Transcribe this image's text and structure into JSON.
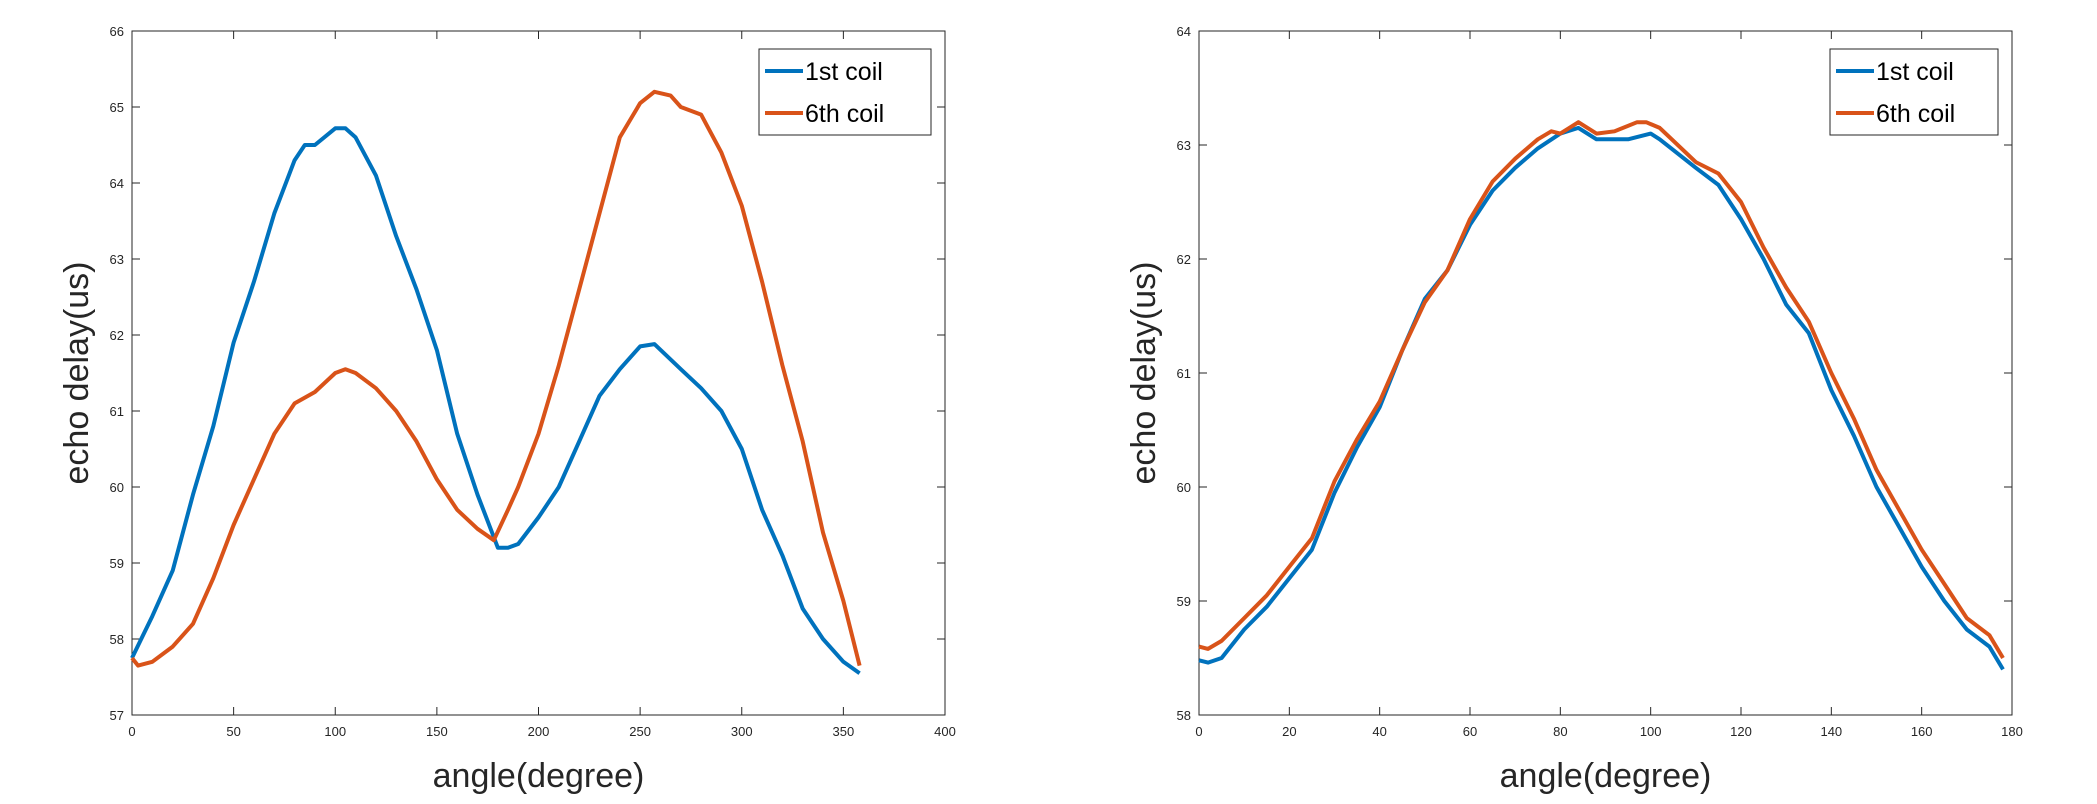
{
  "chart_data": [
    {
      "type": "line",
      "xlabel": "angle(degree)",
      "ylabel": "echo delay(us)",
      "xlim": [
        0,
        400
      ],
      "ylim": [
        57,
        66
      ],
      "xticks": [
        0,
        50,
        100,
        150,
        200,
        250,
        300,
        350,
        400
      ],
      "yticks": [
        57,
        58,
        59,
        60,
        61,
        62,
        63,
        64,
        65,
        66
      ],
      "grid": false,
      "legend": "top-right",
      "series": [
        {
          "name": "1st coil",
          "color": "#0072BD",
          "x": [
            0,
            10,
            20,
            30,
            40,
            50,
            60,
            70,
            80,
            85,
            90,
            100,
            105,
            110,
            120,
            130,
            140,
            150,
            160,
            170,
            180,
            185,
            190,
            200,
            210,
            220,
            230,
            240,
            250,
            257,
            270,
            280,
            290,
            300,
            310,
            320,
            330,
            340,
            350,
            358
          ],
          "y": [
            57.75,
            58.3,
            58.9,
            59.9,
            60.8,
            61.9,
            62.7,
            63.6,
            64.3,
            64.5,
            64.5,
            64.72,
            64.72,
            64.6,
            64.1,
            63.3,
            62.6,
            61.8,
            60.7,
            59.9,
            59.2,
            59.2,
            59.25,
            59.6,
            60.0,
            60.6,
            61.2,
            61.55,
            61.85,
            61.88,
            61.55,
            61.3,
            61.0,
            60.5,
            59.7,
            59.1,
            58.4,
            58.0,
            57.7,
            57.55
          ]
        },
        {
          "name": "6th coil",
          "color": "#D95319",
          "x": [
            0,
            3,
            10,
            20,
            30,
            40,
            50,
            60,
            70,
            80,
            90,
            100,
            105,
            110,
            120,
            130,
            140,
            150,
            160,
            170,
            178,
            185,
            190,
            200,
            210,
            220,
            230,
            240,
            250,
            257,
            265,
            270,
            280,
            290,
            300,
            310,
            320,
            330,
            340,
            350,
            358
          ],
          "y": [
            57.75,
            57.65,
            57.7,
            57.9,
            58.2,
            58.8,
            59.5,
            60.1,
            60.7,
            61.1,
            61.25,
            61.5,
            61.55,
            61.5,
            61.3,
            61.0,
            60.6,
            60.1,
            59.7,
            59.45,
            59.3,
            59.7,
            60.0,
            60.7,
            61.6,
            62.6,
            63.6,
            64.6,
            65.05,
            65.2,
            65.15,
            65.0,
            64.9,
            64.4,
            63.7,
            62.7,
            61.6,
            60.6,
            59.4,
            58.5,
            57.65
          ]
        }
      ]
    },
    {
      "type": "line",
      "xlabel": "angle(degree)",
      "ylabel": "echo delay(us)",
      "xlim": [
        0,
        180
      ],
      "ylim": [
        58,
        64
      ],
      "xticks": [
        0,
        20,
        40,
        60,
        80,
        100,
        120,
        140,
        160,
        180
      ],
      "yticks": [
        58,
        59,
        60,
        61,
        62,
        63,
        64
      ],
      "grid": false,
      "legend": "top-right",
      "series": [
        {
          "name": "1st coil",
          "color": "#0072BD",
          "x": [
            0,
            2,
            5,
            10,
            15,
            20,
            25,
            30,
            35,
            40,
            45,
            50,
            55,
            60,
            65,
            70,
            75,
            80,
            84,
            88,
            95,
            100,
            102,
            110,
            115,
            120,
            125,
            130,
            135,
            140,
            145,
            150,
            155,
            160,
            165,
            170,
            175,
            178
          ],
          "y": [
            58.48,
            58.46,
            58.5,
            58.75,
            58.95,
            59.2,
            59.45,
            59.95,
            60.35,
            60.7,
            61.2,
            61.65,
            61.9,
            62.3,
            62.6,
            62.8,
            62.97,
            63.1,
            63.15,
            63.05,
            63.05,
            63.1,
            63.05,
            62.8,
            62.65,
            62.35,
            62.0,
            61.6,
            61.35,
            60.85,
            60.45,
            60.0,
            59.65,
            59.3,
            59.0,
            58.75,
            58.6,
            58.4
          ]
        },
        {
          "name": "6th coil",
          "color": "#D95319",
          "x": [
            0,
            2,
            5,
            10,
            15,
            20,
            25,
            30,
            35,
            40,
            45,
            50,
            55,
            60,
            65,
            70,
            75,
            78,
            80,
            84,
            88,
            92,
            97,
            99,
            102,
            110,
            115,
            120,
            125,
            130,
            135,
            140,
            145,
            150,
            155,
            160,
            165,
            170,
            175,
            178
          ],
          "y": [
            58.6,
            58.58,
            58.65,
            58.85,
            59.05,
            59.3,
            59.55,
            60.05,
            60.42,
            60.75,
            61.2,
            61.62,
            61.9,
            62.35,
            62.68,
            62.88,
            63.05,
            63.12,
            63.1,
            63.2,
            63.1,
            63.12,
            63.2,
            63.2,
            63.15,
            62.85,
            62.75,
            62.5,
            62.1,
            61.75,
            61.45,
            61.0,
            60.6,
            60.15,
            59.8,
            59.45,
            59.15,
            58.85,
            58.7,
            58.5
          ]
        }
      ]
    }
  ]
}
